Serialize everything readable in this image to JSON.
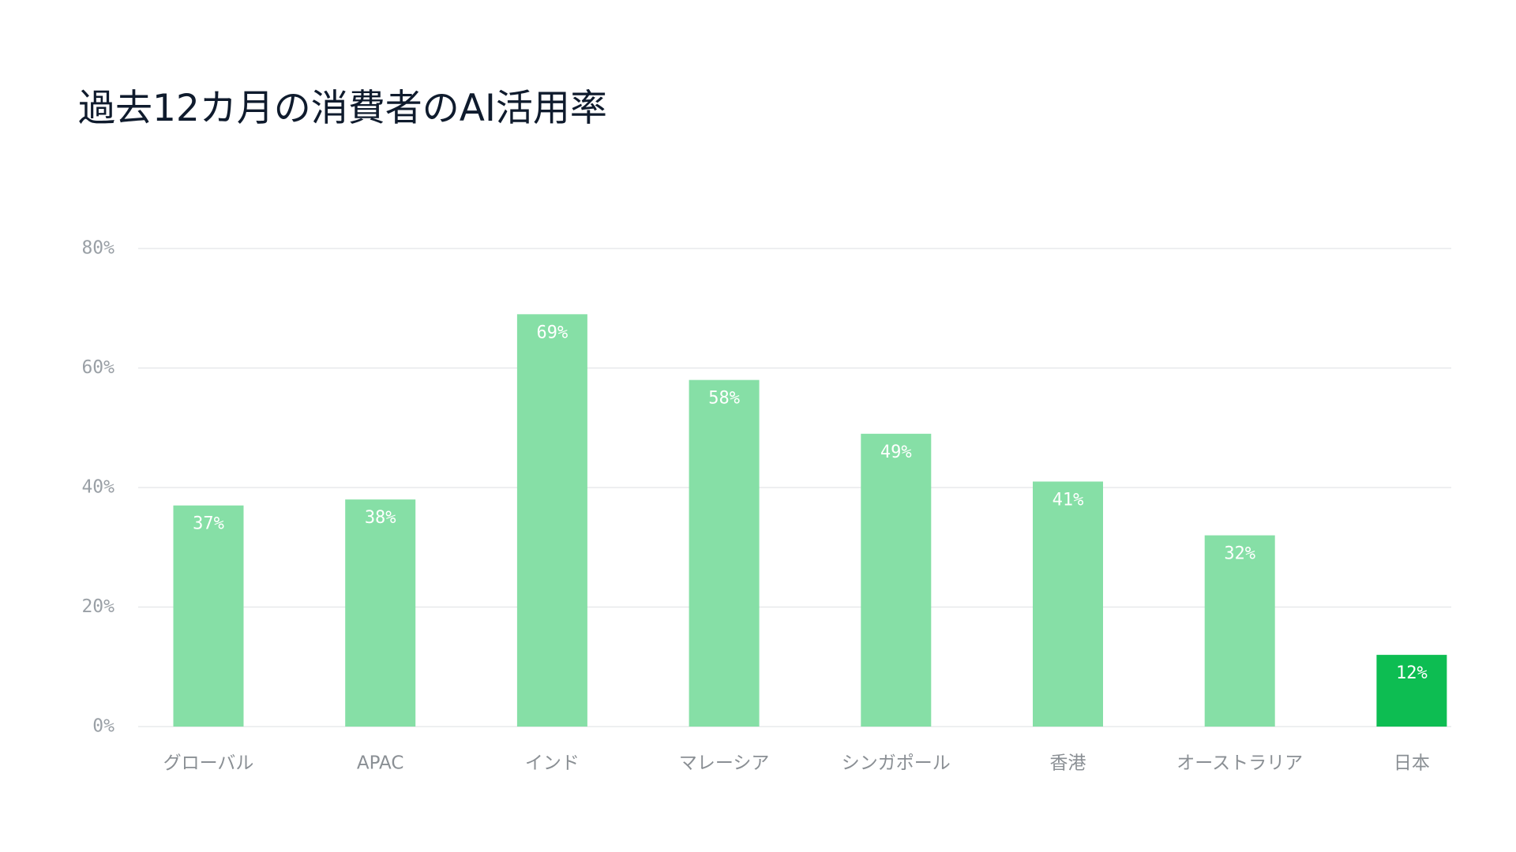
{
  "chart_data": {
    "type": "bar",
    "title": "過去12カ月の消費者のAI活用率",
    "xlabel": "",
    "ylabel": "",
    "ylim": [
      0,
      80
    ],
    "yticks": [
      0,
      20,
      40,
      60,
      80
    ],
    "ytick_labels": [
      "0%",
      "20%",
      "40%",
      "60%",
      "80%"
    ],
    "categories": [
      "グローバル",
      "APAC",
      "インド",
      "マレーシア",
      "シンガポール",
      "香港",
      "オーストラリア",
      "日本"
    ],
    "values": [
      37,
      38,
      69,
      58,
      49,
      41,
      32,
      12
    ],
    "data_labels": [
      "37%",
      "38%",
      "69%",
      "58%",
      "49%",
      "41%",
      "32%",
      "12%"
    ],
    "grid": true,
    "legend": "none",
    "colors": {
      "bar": "#86dfa6",
      "highlight_bar": "#0dbd52",
      "highlight_category": "日本",
      "gridline": "#e3e5e8",
      "title": "#0f1b2d",
      "tick_label": "#9aa0a6",
      "category_label": "#8a8f94",
      "data_label": "#ffffff"
    }
  }
}
